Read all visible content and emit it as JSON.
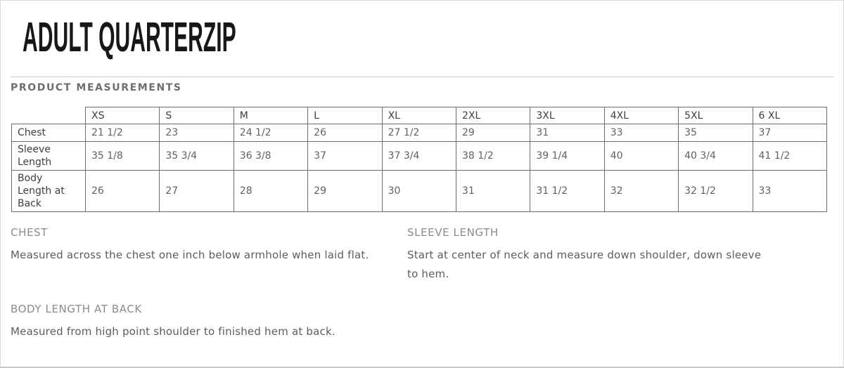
{
  "page": {
    "title": "ADULT QUARTERZIP",
    "section_heading": "PRODUCT MEASUREMENTS"
  },
  "table": {
    "size_headers": [
      "XS",
      "S",
      "M",
      "L",
      "XL",
      "2XL",
      "3XL",
      "4XL",
      "5XL",
      "6 XL"
    ],
    "rows": [
      {
        "label": "Chest",
        "values": [
          "21 1/2",
          "23",
          "24 1/2",
          "26",
          "27 1/2",
          "29",
          "31",
          "33",
          "35",
          "37"
        ]
      },
      {
        "label": "Sleeve Length",
        "values": [
          "35 1/8",
          "35 3/4",
          "36 3/8",
          "37",
          "37 3/4",
          "38 1/2",
          "39 1/4",
          "40",
          "40 3/4",
          "41 1/2"
        ]
      },
      {
        "label": "Body Length at Back",
        "values": [
          "26",
          "27",
          "28",
          "29",
          "30",
          "31",
          "31 1/2",
          "32",
          "32 1/2",
          "33"
        ]
      }
    ]
  },
  "definitions": [
    {
      "term": "CHEST",
      "description": "Measured across the chest one inch below armhole when laid flat."
    },
    {
      "term": "SLEEVE LENGTH",
      "description": "Start at center of neck and measure down shoulder, down sleeve to hem."
    },
    {
      "term": "BODY LENGTH AT BACK",
      "description": "Measured from high point shoulder to finished hem at back."
    }
  ],
  "colors": {
    "title_text": "#171717",
    "section_heading_text": "#6e6e6e",
    "table_border": "#6b6b6b",
    "table_header_text": "#3e3e3e",
    "table_value_text": "#616161",
    "definition_term_text": "#8b8b8b",
    "definition_body_text": "#5d5d5d",
    "page_border": "#d9d9d9"
  }
}
